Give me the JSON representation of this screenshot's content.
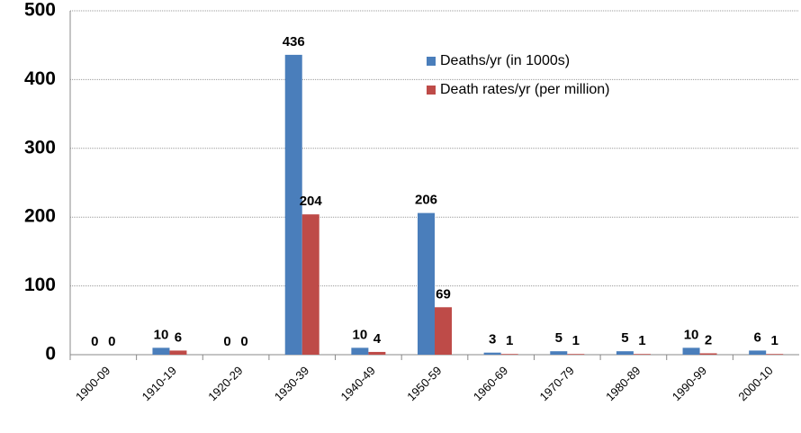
{
  "chart_data": {
    "type": "bar",
    "categories": [
      "1900-09",
      "1910-19",
      "1920-29",
      "1930-39",
      "1940-49",
      "1950-59",
      "1960-69",
      "1970-79",
      "1980-89",
      "1990-99",
      "2000-10"
    ],
    "series": [
      {
        "name": "Deaths/yr (in 1000s)",
        "color": "#4a7ebb",
        "values": [
          0,
          10,
          0,
          436,
          10,
          206,
          3,
          5,
          5,
          10,
          6
        ]
      },
      {
        "name": "Death rates/yr (per million)",
        "color": "#be4b48",
        "values": [
          0,
          6,
          0,
          204,
          4,
          69,
          1,
          1,
          1,
          2,
          1
        ]
      }
    ],
    "ylim": [
      0,
      500
    ],
    "yticks": [
      0,
      100,
      200,
      300,
      400,
      500
    ],
    "grid": true,
    "legend": "top-right"
  }
}
